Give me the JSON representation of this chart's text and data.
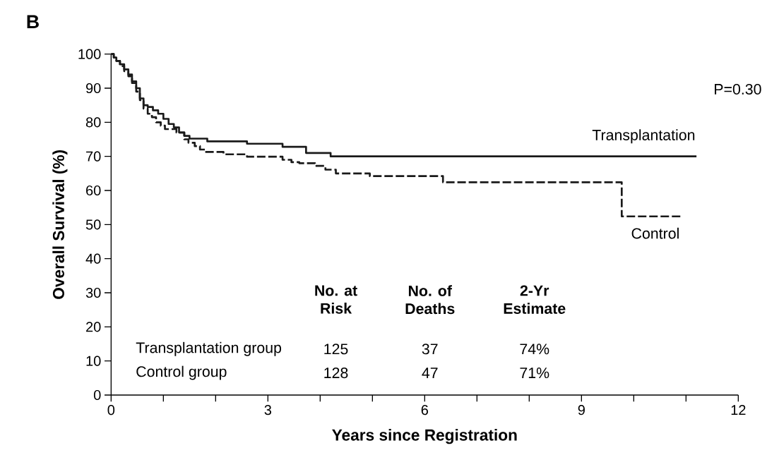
{
  "chart_data": {
    "type": "step",
    "xlabel": "Years since Registration",
    "ylabel": "Overall Survival (%)",
    "xlim": [
      0,
      12
    ],
    "ylim": [
      0,
      100
    ],
    "xticks": [
      0,
      {
        "value": 1,
        "label": null
      },
      {
        "value": 2,
        "label": null
      },
      3,
      {
        "value": 4,
        "label": null
      },
      {
        "value": 5,
        "label": null
      },
      6,
      {
        "value": 7,
        "label": null
      },
      {
        "value": 8,
        "label": null
      },
      9,
      {
        "value": 10,
        "label": null
      },
      {
        "value": 11,
        "label": null
      },
      12
    ],
    "yticks": [
      0,
      10,
      20,
      30,
      40,
      50,
      60,
      70,
      80,
      90,
      100
    ],
    "series": [
      {
        "name": "Transplantation",
        "color": "#1a1a1a",
        "line_style": "solid",
        "x": [
          0,
          0.05,
          0.1,
          0.17,
          0.25,
          0.33,
          0.4,
          0.48,
          0.55,
          0.62,
          0.7,
          0.8,
          0.9,
          1.0,
          1.1,
          1.2,
          1.3,
          1.4,
          1.5,
          1.84,
          2.6,
          3.28,
          3.73,
          4.2,
          11.2
        ],
        "values": [
          100,
          99,
          98,
          97,
          95.5,
          94,
          92,
          90,
          87,
          85,
          84.5,
          83.5,
          82.5,
          81,
          79.5,
          78.5,
          77,
          76,
          75.2,
          74.4,
          73.7,
          72.8,
          71,
          70,
          70
        ]
      },
      {
        "name": "Control",
        "color": "#1a1a1a",
        "line_style": "dashed",
        "x": [
          0,
          0.05,
          0.1,
          0.17,
          0.25,
          0.33,
          0.4,
          0.48,
          0.55,
          0.62,
          0.7,
          0.78,
          0.86,
          0.95,
          1.03,
          1.25,
          1.4,
          1.48,
          1.6,
          1.7,
          1.8,
          2.15,
          2.6,
          3.28,
          3.45,
          3.6,
          3.9,
          4.1,
          4.3,
          4.95,
          6.35,
          9.77,
          10.9
        ],
        "values": [
          100,
          99,
          98,
          96.5,
          95,
          93.5,
          91.5,
          89,
          86.5,
          84,
          82.5,
          81.5,
          80,
          79,
          78,
          77,
          75,
          74,
          73,
          72,
          71.3,
          70.6,
          69.9,
          69,
          68.3,
          68,
          67.2,
          66.1,
          65,
          64.2,
          62.4,
          52.4,
          52.4
        ]
      }
    ],
    "annotations": [
      "B",
      "P=0.30",
      "No. at Risk",
      "No. of Deaths",
      "2-Yr Estimate",
      "Transplantation group",
      "125",
      "37",
      "74%",
      "Control group",
      "128",
      "47",
      "71%"
    ]
  }
}
